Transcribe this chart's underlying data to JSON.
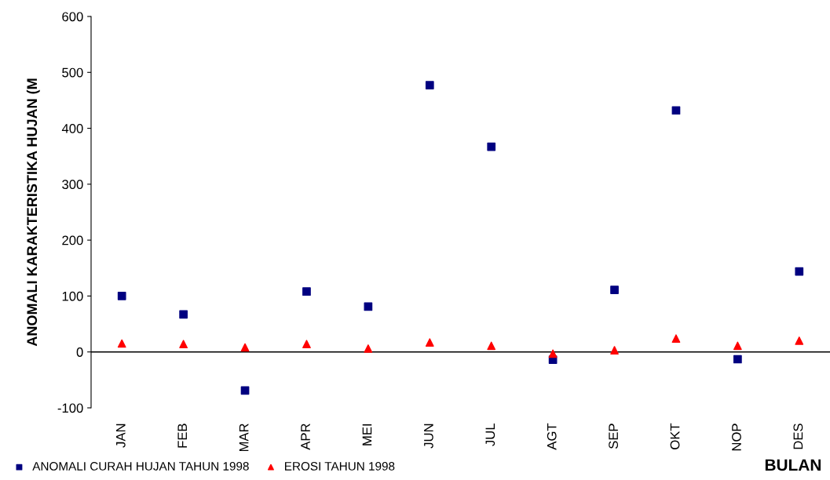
{
  "chart_data": {
    "type": "scatter",
    "xlabel": "BULAN",
    "ylabel": "ANOMALI KARAKTERISTIKA HUJAN (M",
    "categories": [
      "JAN",
      "FEB",
      "MAR",
      "APR",
      "MEI",
      "JUN",
      "JUL",
      "AGT",
      "SEP",
      "OKT",
      "NOP",
      "DES"
    ],
    "series": [
      {
        "name": "ANOMALI CURAH HUJAN TAHUN 1998",
        "color": "#000080",
        "marker": "square",
        "values": [
          100,
          67,
          -69,
          108,
          81,
          477,
          367,
          -14,
          111,
          432,
          -13,
          144
        ]
      },
      {
        "name": "EROSI TAHUN 1998",
        "color": "#ff0000",
        "marker": "triangle",
        "values": [
          15,
          14,
          8,
          14,
          6,
          17,
          11,
          -3,
          3,
          24,
          11,
          20
        ]
      }
    ],
    "ylim": [
      -100,
      600
    ],
    "yticks": [
      -100,
      0,
      100,
      200,
      300,
      400,
      500,
      600
    ],
    "ref_lines": [
      {
        "axis": "y",
        "value": 0,
        "color": "#000000"
      }
    ],
    "grid": false,
    "legend": "bottom left"
  }
}
